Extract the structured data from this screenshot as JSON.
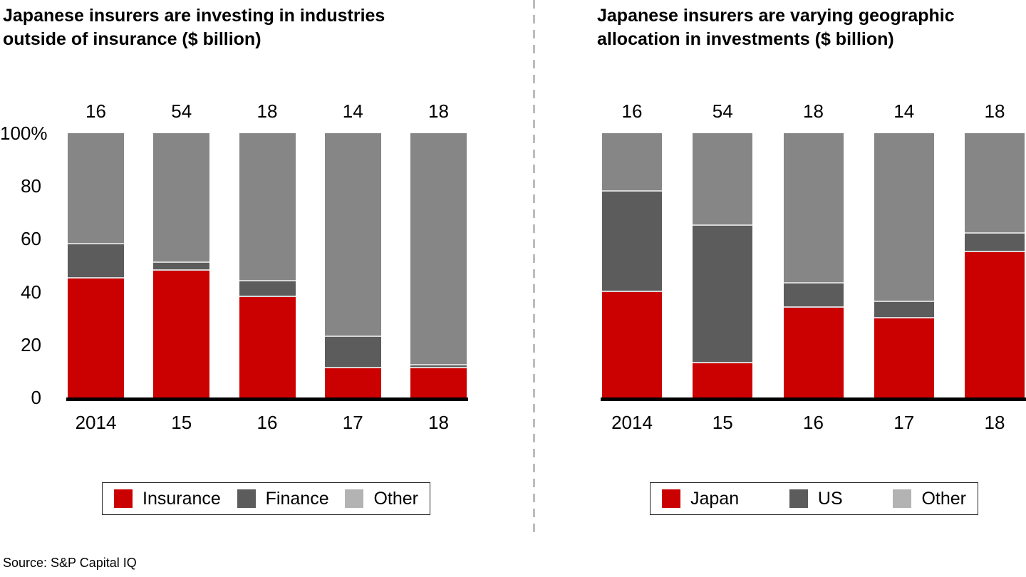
{
  "source": "Source: S&P Capital IQ",
  "y_axis": {
    "ticks": [
      "100%",
      "80",
      "60",
      "40",
      "20",
      "0"
    ]
  },
  "colors": {
    "red": "#cb0000",
    "dark_gray": "#5c5c5c",
    "mid_gray": "#868686",
    "legend_other_gray": "#b3b3b3",
    "segment_separator": "#d6d6d6",
    "divider_gray": "#bdbdbd",
    "baseline_black": "#000000"
  },
  "chart_data": [
    {
      "type": "bar",
      "variant": "100-percent-stacked-column",
      "title": "Japanese insurers are investing in industries outside of insurance ($ billion)",
      "title_lines": [
        "Japanese insurers are investing in industries",
        "outside of insurance ($ billion)"
      ],
      "categories": [
        "2014",
        "15",
        "16",
        "17",
        "18"
      ],
      "totals": [
        "16",
        "54",
        "18",
        "14",
        "18"
      ],
      "ylim": [
        0,
        100
      ],
      "grid": false,
      "legend_position": "bottom",
      "series": [
        {
          "name": "Insurance",
          "color": "#cb0000",
          "legend_color": "#cb0000",
          "values": [
            45,
            48,
            38,
            11,
            11
          ]
        },
        {
          "name": "Finance",
          "color": "#5c5c5c",
          "legend_color": "#5c5c5c",
          "values": [
            13,
            3,
            6,
            12,
            1
          ]
        },
        {
          "name": "Other",
          "color": "#868686",
          "legend_color": "#b3b3b3",
          "values": [
            42,
            49,
            56,
            77,
            88
          ]
        }
      ]
    },
    {
      "type": "bar",
      "variant": "100-percent-stacked-column",
      "title": "Japanese insurers are varying geographic allocation in investments ($ billion)",
      "title_lines": [
        "Japanese insurers are varying geographic",
        "allocation in investments ($ billion)"
      ],
      "categories": [
        "2014",
        "15",
        "16",
        "17",
        "18"
      ],
      "totals": [
        "16",
        "54",
        "18",
        "14",
        "18"
      ],
      "ylim": [
        0,
        100
      ],
      "grid": false,
      "legend_position": "bottom",
      "series": [
        {
          "name": "Japan",
          "color": "#cb0000",
          "legend_color": "#cb0000",
          "values": [
            40,
            13,
            34,
            30,
            55
          ]
        },
        {
          "name": "US",
          "color": "#5c5c5c",
          "legend_color": "#5c5c5c",
          "values": [
            38,
            52,
            9,
            6,
            7
          ]
        },
        {
          "name": "Other",
          "color": "#868686",
          "legend_color": "#b3b3b3",
          "values": [
            22,
            35,
            57,
            64,
            38
          ]
        }
      ]
    }
  ]
}
